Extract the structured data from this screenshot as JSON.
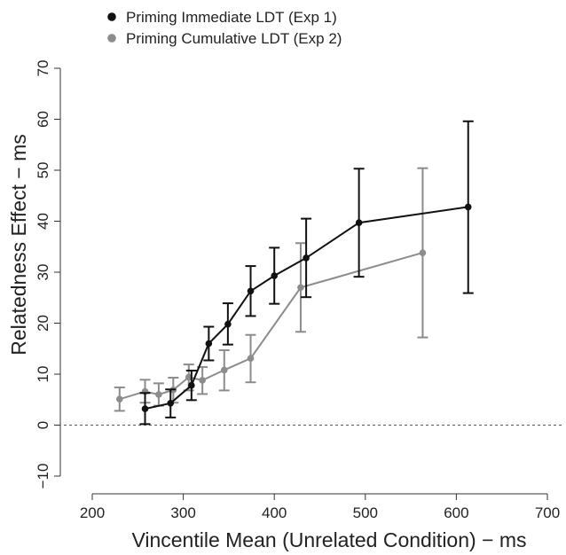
{
  "chart_data": {
    "type": "line",
    "xlabel": "Vincentile Mean (Unrelated Condition) − ms",
    "ylabel": "Relatedness Effect − ms",
    "xlim": [
      200,
      700
    ],
    "ylim": [
      -10,
      70
    ],
    "xticks": [
      "200",
      "300",
      "400",
      "500",
      "600",
      "700"
    ],
    "yticks": [
      "−10",
      "0",
      "10",
      "20",
      "30",
      "40",
      "50",
      "60",
      "70"
    ],
    "reference_line": {
      "y": 0,
      "style": "dashed"
    },
    "legend_position": "top-left",
    "series": [
      {
        "name": "Priming Immediate LDT (Exp 1)",
        "color": "#111111",
        "points": [
          {
            "x": 258,
            "y": 3.2,
            "lo": 0.2,
            "hi": 6.3
          },
          {
            "x": 286,
            "y": 4.3,
            "lo": 1.5,
            "hi": 7.0
          },
          {
            "x": 309,
            "y": 7.8,
            "lo": 4.9,
            "hi": 10.7
          },
          {
            "x": 328,
            "y": 16.0,
            "lo": 12.7,
            "hi": 19.3
          },
          {
            "x": 349,
            "y": 19.8,
            "lo": 15.8,
            "hi": 23.9
          },
          {
            "x": 374,
            "y": 26.3,
            "lo": 21.4,
            "hi": 31.2
          },
          {
            "x": 400,
            "y": 29.3,
            "lo": 23.8,
            "hi": 34.8
          },
          {
            "x": 435,
            "y": 32.8,
            "lo": 25.1,
            "hi": 40.5
          },
          {
            "x": 493,
            "y": 39.7,
            "lo": 29.1,
            "hi": 50.3
          },
          {
            "x": 613,
            "y": 42.8,
            "lo": 25.9,
            "hi": 59.6
          }
        ]
      },
      {
        "name": "Priming Cumulative LDT (Exp 2)",
        "color": "#8c8c8c",
        "points": [
          {
            "x": 230,
            "y": 5.1,
            "lo": 2.8,
            "hi": 7.4
          },
          {
            "x": 258,
            "y": 6.6,
            "lo": 4.4,
            "hi": 8.9
          },
          {
            "x": 273,
            "y": 6.0,
            "lo": 3.8,
            "hi": 8.2
          },
          {
            "x": 289,
            "y": 6.9,
            "lo": 4.4,
            "hi": 9.3
          },
          {
            "x": 306,
            "y": 9.4,
            "lo": 6.8,
            "hi": 11.9
          },
          {
            "x": 321,
            "y": 8.8,
            "lo": 6.1,
            "hi": 11.4
          },
          {
            "x": 345,
            "y": 10.8,
            "lo": 6.8,
            "hi": 14.7
          },
          {
            "x": 374,
            "y": 13.1,
            "lo": 8.4,
            "hi": 17.7
          },
          {
            "x": 429,
            "y": 27.0,
            "lo": 18.3,
            "hi": 35.7
          },
          {
            "x": 563,
            "y": 33.8,
            "lo": 17.2,
            "hi": 50.4
          }
        ]
      }
    ]
  }
}
